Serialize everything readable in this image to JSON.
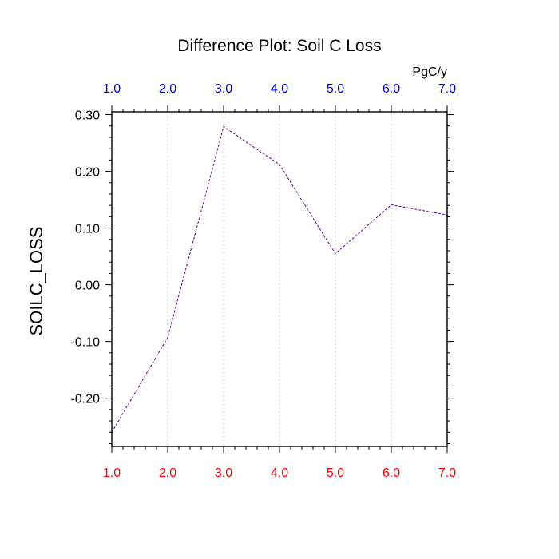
{
  "chart_data": {
    "type": "line",
    "title": "Difference Plot: Soil C Loss",
    "ylabel": "SOILC_LOSS",
    "top_axis_units": "PgC/y",
    "x": [
      1,
      2,
      3,
      4,
      5,
      6,
      7
    ],
    "x_tick_labels": [
      "1.0",
      "2.0",
      "3.0",
      "4.0",
      "5.0",
      "6.0",
      "7.0"
    ],
    "y_tick_values": [
      0.3,
      0.2,
      0.1,
      0.0,
      -0.1,
      -0.2
    ],
    "y_tick_labels": [
      "0.30",
      "0.20",
      "0.10",
      "0.00",
      "-0.10",
      "-0.20"
    ],
    "xlim": [
      1,
      7
    ],
    "ylim": [
      -0.285,
      0.305
    ],
    "vertical_grid": true,
    "grid_style": "dotted",
    "series": [
      {
        "values": [
          -0.26,
          -0.093,
          0.279,
          0.212,
          0.055,
          0.141,
          0.123
        ],
        "color": "#5a0090",
        "style": "dashed"
      }
    ],
    "colors": {
      "bottom_tick_labels": "#ff0000",
      "top_tick_labels": "#0000ff",
      "axes": "#000000",
      "grid": "#c8c8c8"
    }
  }
}
